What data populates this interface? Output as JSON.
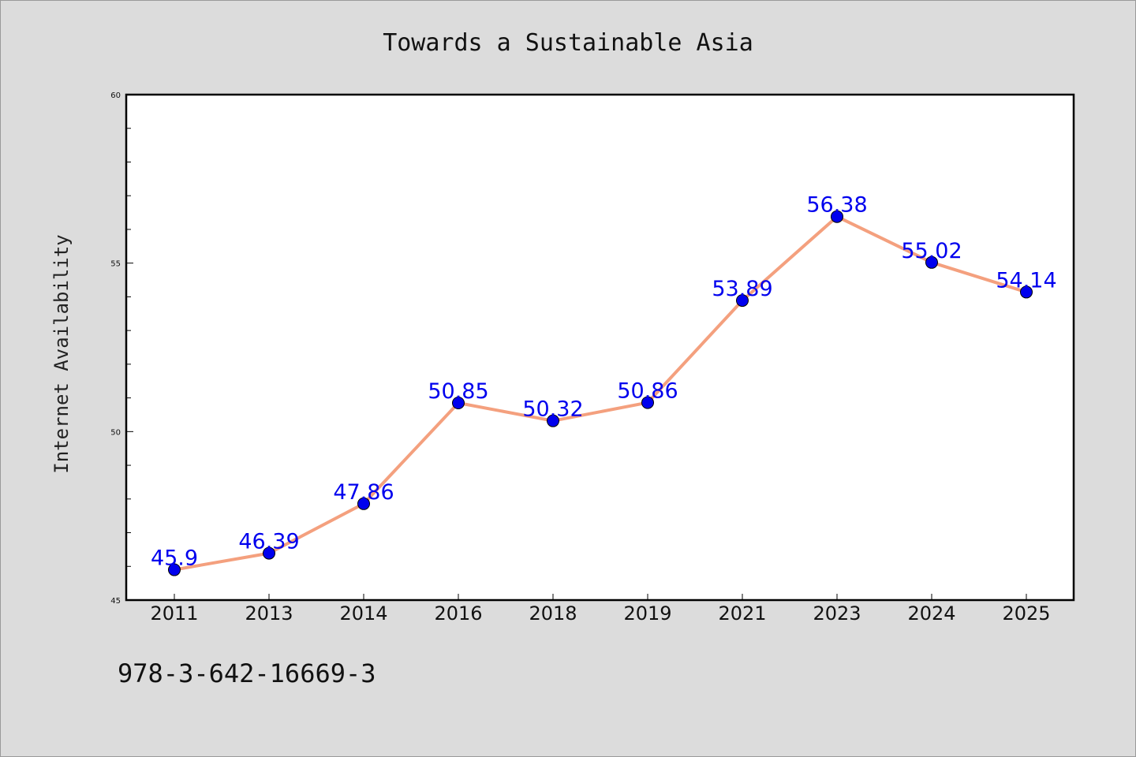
{
  "chart_data": {
    "type": "line",
    "title": "Towards a Sustainable Asia",
    "xlabel": "",
    "ylabel": "Internet Availability",
    "categories": [
      "2011",
      "2013",
      "2014",
      "2016",
      "2018",
      "2019",
      "2021",
      "2023",
      "2024",
      "2025"
    ],
    "series": [
      {
        "values": [
          45.9,
          46.39,
          47.86,
          50.85,
          50.32,
          50.86,
          53.89,
          56.38,
          55.02,
          54.14
        ],
        "labels": [
          "45.9",
          "46.39",
          "47.86",
          "50.85",
          "50.32",
          "50.86",
          "53.89",
          "56.38",
          "55.02",
          "54.14"
        ],
        "line_color": "#f4a07e",
        "marker_color": "#0000ee",
        "label_color": "#0000ee"
      }
    ],
    "ylim": [
      45,
      60
    ],
    "yticks": [
      "45",
      "50",
      "55",
      "60"
    ],
    "grid": false,
    "legend": "none"
  },
  "footer": {
    "code": "978-3-642-16669-3"
  }
}
